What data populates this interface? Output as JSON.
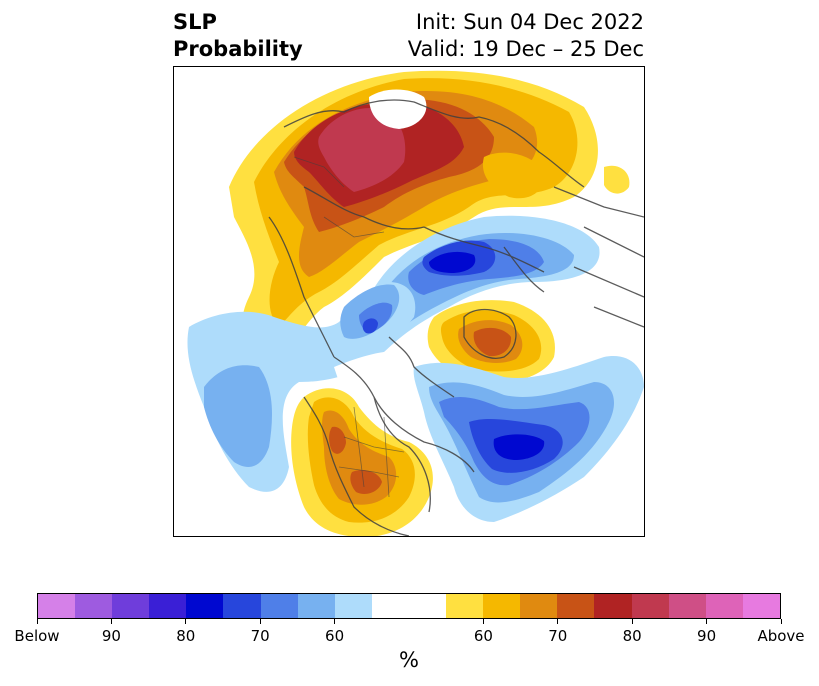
{
  "title": {
    "left_line1": "SLP",
    "left_line2": "Probability",
    "right_line1": "Init: Sun 04 Dec 2022",
    "right_line2": "Valid: 19 Dec – 25 Dec"
  },
  "colorbar": {
    "label": "%",
    "colors": [
      "#d580e8",
      "#9e5be0",
      "#6f3ddb",
      "#3a1fd6",
      "#0008d0",
      "#2746dc",
      "#4f7fe8",
      "#77b1f0",
      "#aedcfb",
      "#ffffff",
      "#ffffff",
      "#ffe040",
      "#f5b800",
      "#e08a10",
      "#c85316",
      "#b02323",
      "#c0394f",
      "#cf4f86",
      "#de63b8",
      "#e77ae0"
    ],
    "tick_labels": [
      "Below",
      "90",
      "80",
      "70",
      "60",
      "60",
      "70",
      "80",
      "90",
      "Above"
    ]
  },
  "map": {
    "projection": "polar stereographic (Northern Hemisphere)",
    "legend_meaning": "Probability of sea-level pressure above/below normal"
  }
}
